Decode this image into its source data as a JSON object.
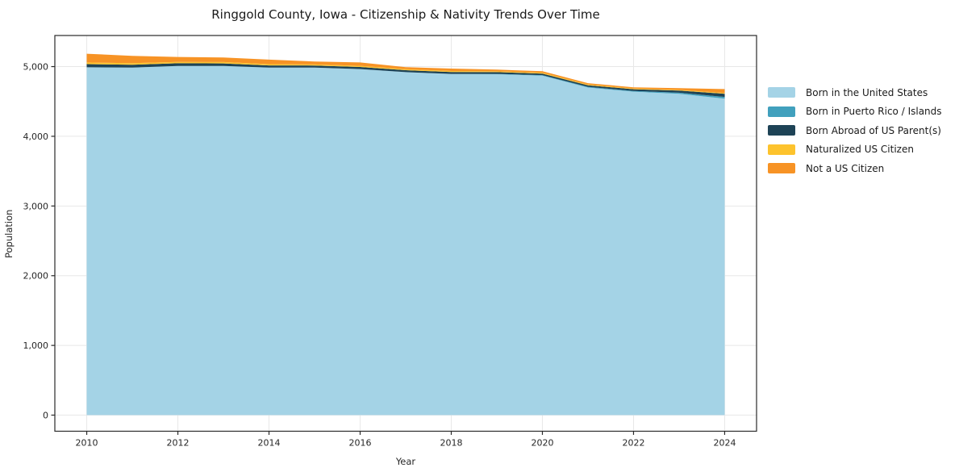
{
  "title": "Ringgold County, Iowa - Citizenship & Nativity Trends Over Time",
  "colors": {
    "background": "#ffffff",
    "grid": "#e8e8e8",
    "spine": "#2a2a2a",
    "tick_text": "#262626"
  },
  "chart_data": {
    "type": "area",
    "stacked": true,
    "title": "Ringgold County, Iowa - Citizenship & Nativity Trends Over Time",
    "xlabel": "Year",
    "ylabel": "Population",
    "legend_position": "right-outside",
    "grid": true,
    "x": [
      2010,
      2011,
      2012,
      2013,
      2014,
      2015,
      2016,
      2017,
      2018,
      2019,
      2020,
      2021,
      2022,
      2023,
      2024
    ],
    "series": [
      {
        "name": "Born in the United States",
        "color": "#a4d3e6",
        "values": [
          4990,
          4985,
          5010,
          5010,
          4985,
          4985,
          4965,
          4920,
          4895,
          4890,
          4870,
          4700,
          4640,
          4610,
          4540
        ]
      },
      {
        "name": "Born in Puerto Rico / Islands",
        "color": "#41a0bd",
        "values": [
          0,
          0,
          0,
          0,
          0,
          0,
          0,
          0,
          0,
          5,
          8,
          10,
          10,
          15,
          25
        ]
      },
      {
        "name": "Born Abroad of US Parent(s)",
        "color": "#1e4356",
        "values": [
          45,
          42,
          38,
          35,
          32,
          30,
          30,
          28,
          28,
          25,
          22,
          22,
          25,
          30,
          45
        ]
      },
      {
        "name": "Naturalized US Citizen",
        "color": "#fdc32d",
        "values": [
          25,
          22,
          20,
          20,
          18,
          16,
          16,
          14,
          14,
          12,
          12,
          10,
          10,
          10,
          12
        ]
      },
      {
        "name": "Not a US Citizen",
        "color": "#f79325",
        "values": [
          125,
          105,
          70,
          65,
          65,
          42,
          48,
          30,
          35,
          25,
          22,
          20,
          18,
          25,
          55
        ]
      }
    ],
    "xlim": [
      2009.3,
      2024.7
    ],
    "ylim": [
      -231,
      5446
    ],
    "xticks": {
      "values": [
        2010,
        2012,
        2014,
        2016,
        2018,
        2020,
        2022,
        2024
      ],
      "labels": [
        "2010",
        "2012",
        "2014",
        "2016",
        "2018",
        "2020",
        "2022",
        "2024"
      ]
    },
    "yticks": {
      "values": [
        0,
        1000,
        2000,
        3000,
        4000,
        5000
      ],
      "labels": [
        "0",
        "1,000",
        "2,000",
        "3,000",
        "4,000",
        "5,000"
      ]
    }
  }
}
